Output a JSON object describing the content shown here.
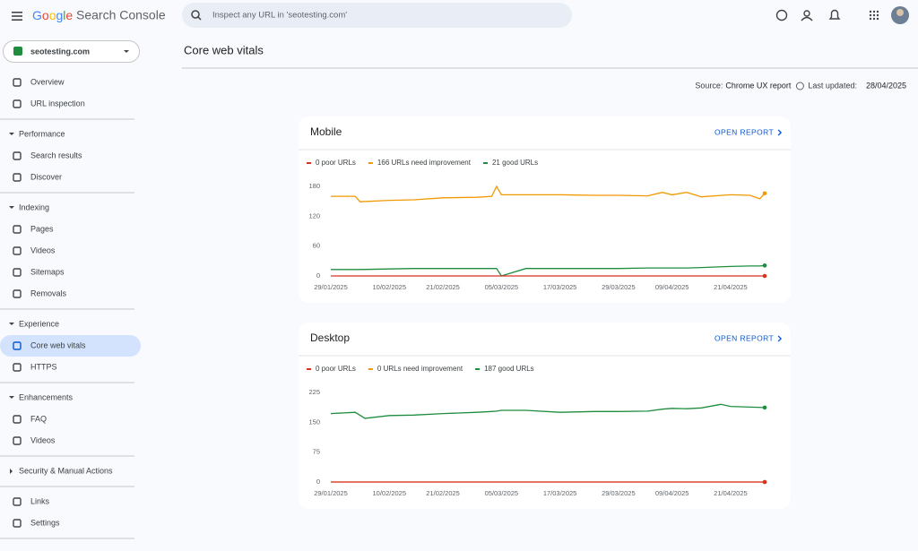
{
  "header": {
    "brand": "Google",
    "product": "Search Console",
    "search_placeholder": "Inspect any URL in 'seotesting.com'"
  },
  "sidebar": {
    "property": "seotesting.com",
    "top": [
      "Overview",
      "URL inspection"
    ],
    "sections": [
      {
        "title": "Performance",
        "items": [
          "Search results",
          "Discover"
        ]
      },
      {
        "title": "Indexing",
        "items": [
          "Pages",
          "Videos",
          "Sitemaps",
          "Removals"
        ]
      },
      {
        "title": "Experience",
        "items": [
          "Core web vitals",
          "HTTPS"
        ]
      },
      {
        "title": "Enhancements",
        "items": [
          "FAQ",
          "Videos"
        ]
      },
      {
        "title": "Security & Manual Actions",
        "items": []
      }
    ],
    "bottom": [
      "Links",
      "Settings"
    ],
    "selected": "Core web vitals"
  },
  "page": {
    "title": "Core web vitals",
    "source_label": "Source:",
    "source": "Chrome UX report",
    "updated_label": "Last updated:",
    "updated": "28/04/2025"
  },
  "chart_data": [
    {
      "type": "line",
      "title": "Mobile",
      "link": "OPEN REPORT",
      "x": [
        "29/01/2025",
        "03/02/2025",
        "04/02/2025",
        "10/02/2025",
        "15/02/2025",
        "21/02/2025",
        "28/02/2025",
        "03/03/2025",
        "04/03/2025",
        "05/03/2025",
        "10/03/2025",
        "17/03/2025",
        "24/03/2025",
        "29/03/2025",
        "04/04/2025",
        "07/04/2025",
        "09/04/2025",
        "12/04/2025",
        "15/04/2025",
        "21/04/2025",
        "25/04/2025",
        "27/04/2025",
        "28/04/2025"
      ],
      "xlim": [
        "29/01/2025",
        "28/04/2025"
      ],
      "xticks": [
        "29/01/2025",
        "10/02/2025",
        "21/02/2025",
        "05/03/2025",
        "17/03/2025",
        "29/03/2025",
        "09/04/2025",
        "21/04/2025"
      ],
      "ylim": [
        0,
        180
      ],
      "yticks": [
        0,
        60,
        120,
        180
      ],
      "series": [
        {
          "name": "0 poor URLs",
          "color": "#d93025",
          "values": [
            0,
            0,
            0,
            0,
            0,
            0,
            0,
            0,
            0,
            0,
            0,
            0,
            0,
            0,
            0,
            0,
            0,
            0,
            0,
            0,
            0,
            0,
            0
          ]
        },
        {
          "name": "166 URLs need improvement",
          "color": "#f29900",
          "values": [
            160,
            160,
            149,
            152,
            153,
            157,
            158,
            160,
            180,
            163,
            163,
            163,
            162,
            162,
            161,
            168,
            163,
            168,
            159,
            163,
            162,
            155,
            166
          ]
        },
        {
          "name": "21 good URLs",
          "color": "#1e8e3e",
          "values": [
            13,
            13,
            13,
            14,
            15,
            15,
            15,
            15,
            15,
            0,
            15,
            15,
            15,
            15,
            16,
            16,
            16,
            16,
            17,
            19,
            20,
            20,
            21
          ]
        }
      ]
    },
    {
      "type": "line",
      "title": "Desktop",
      "link": "OPEN REPORT",
      "x": [
        "29/01/2025",
        "03/02/2025",
        "05/02/2025",
        "10/02/2025",
        "15/02/2025",
        "21/02/2025",
        "28/02/2025",
        "03/03/2025",
        "04/03/2025",
        "05/03/2025",
        "10/03/2025",
        "17/03/2025",
        "24/03/2025",
        "29/03/2025",
        "04/04/2025",
        "07/04/2025",
        "09/04/2025",
        "12/04/2025",
        "15/04/2025",
        "19/04/2025",
        "21/04/2025",
        "25/04/2025",
        "28/04/2025"
      ],
      "xlim": [
        "29/01/2025",
        "28/04/2025"
      ],
      "xticks": [
        "29/01/2025",
        "10/02/2025",
        "21/02/2025",
        "05/03/2025",
        "17/03/2025",
        "29/03/2025",
        "09/04/2025",
        "21/04/2025"
      ],
      "ylim": [
        0,
        225
      ],
      "yticks": [
        0,
        75,
        150,
        225
      ],
      "series": [
        {
          "name": "0 poor URLs",
          "color": "#d93025",
          "values": [
            0,
            0,
            0,
            0,
            0,
            0,
            0,
            0,
            0,
            0,
            0,
            0,
            0,
            0,
            0,
            0,
            0,
            0,
            0,
            0,
            0,
            0,
            0
          ]
        },
        {
          "name": "0 URLs need improvement",
          "color": "#f29900",
          "values": [
            0,
            0,
            0,
            0,
            0,
            0,
            0,
            0,
            0,
            0,
            0,
            0,
            0,
            0,
            0,
            0,
            0,
            0,
            0,
            0,
            0,
            0,
            0
          ]
        },
        {
          "name": "187 good URLs",
          "color": "#1e8e3e",
          "values": [
            172,
            175,
            160,
            167,
            168,
            172,
            175,
            177,
            178,
            180,
            180,
            175,
            177,
            177,
            178,
            183,
            185,
            184,
            186,
            195,
            190,
            188,
            187
          ]
        }
      ]
    }
  ]
}
